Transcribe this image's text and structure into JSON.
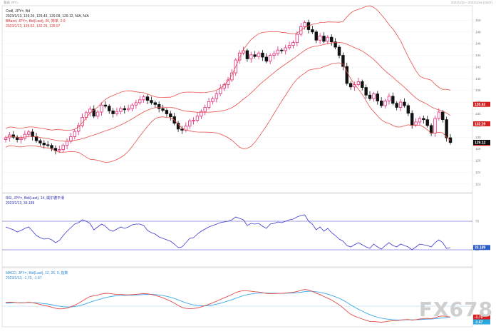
{
  "header": {
    "app_label": "報表 JPY=",
    "time_range": "2022/4/20 - 2023/1/16 (GMT)"
  },
  "main_panel": {
    "legend_line1": "Cndl, JPY=, Bd",
    "legend_line2": "2023/1/13, 129.26, 129.43, 129.09, 129.12, N/A, N/A",
    "legend_line3": "BBand, JPY=, Bid(Last), 20, 简单, 2.0",
    "legend_line4": "2023/1/13, 135.62, 132.29, 128.97"
  },
  "rsi_panel": {
    "legend_line1": "RSI, JPY=, Bid(Last), 14, 威尔德平滑",
    "legend_line2": "2023/1/13, 33.189"
  },
  "macd_panel": {
    "legend_line1": "MACD, JPY=, Bid(Last), 12, 26, 9, 指数",
    "legend_line2": "2023/1/13, -1.70, -1.67"
  },
  "watermark": "FX678",
  "colors": {
    "up_candle": "#e0287a",
    "down_candle": "#111111",
    "bband": "#e8504a",
    "rsi": "#3a3ad0",
    "macd_line": "#e04848",
    "signal_line": "#3aa8e8",
    "badge_red": "#d81e1e",
    "badge_black": "#111111",
    "badge_blue": "#2a5cc8",
    "badge_cyan": "#2aa8e0"
  },
  "chart_data": [
    {
      "type": "candlestick",
      "series_label": "Cndl, JPY=, Bd",
      "ylim": [
        121,
        152
      ],
      "y_ticks": [
        122,
        124,
        126,
        128,
        130,
        132,
        134,
        136,
        138,
        140,
        142,
        144,
        146,
        148,
        150
      ],
      "last_close_label": "129.12",
      "bband_upper_label": "135.62",
      "bband_mid_label": "132.29",
      "bband_lower_label": "128.97",
      "closes": [
        129.9,
        130.4,
        130.0,
        129.6,
        129.8,
        130.5,
        130.9,
        130.1,
        129.4,
        129.0,
        128.7,
        128.6,
        128.1,
        127.7,
        127.9,
        128.6,
        129.3,
        130.1,
        131.0,
        132.0,
        133.4,
        134.2,
        134.8,
        133.6,
        134.3,
        135.5,
        135.3,
        134.5,
        134.0,
        134.4,
        134.9,
        134.7,
        134.9,
        135.5,
        135.9,
        136.4,
        136.9,
        136.3,
        135.9,
        135.6,
        134.9,
        134.6,
        134.0,
        133.5,
        132.4,
        131.4,
        131.2,
        131.9,
        132.8,
        132.9,
        133.6,
        134.4,
        135.1,
        136.1,
        136.6,
        137.4,
        138.4,
        139.0,
        139.8,
        141.0,
        143.2,
        144.4,
        144.8,
        143.4,
        144.1,
        143.8,
        144.4,
        143.7,
        143.0,
        144.0,
        144.3,
        144.9,
        144.8,
        145.3,
        145.7,
        146.2,
        147.6,
        148.9,
        149.6,
        148.4,
        148.0,
        146.6,
        147.3,
        146.4,
        147.1,
        146.3,
        145.4,
        144.0,
        142.1,
        139.2,
        138.6,
        139.0,
        139.5,
        138.5,
        137.2,
        136.6,
        137.4,
        136.2,
        135.4,
        136.2,
        137.0,
        135.8,
        135.1,
        136.0,
        135.4,
        134.1,
        132.1,
        132.6,
        133.2,
        133.0,
        132.0,
        130.7,
        133.2,
        134.3,
        133.0,
        129.9,
        129.1
      ]
    },
    {
      "type": "line",
      "series_label": "RSI, JPY=, Bid(Last), 14",
      "ylim": [
        10,
        90
      ],
      "reference_lines": [
        70,
        30
      ],
      "last_value_label": "33.189",
      "values": [
        62,
        60,
        58,
        55,
        57,
        60,
        62,
        56,
        50,
        47,
        45,
        46,
        44,
        40,
        43,
        50,
        56,
        61,
        66,
        68,
        72,
        70,
        67,
        58,
        62,
        66,
        63,
        58,
        56,
        59,
        62,
        60,
        62,
        65,
        66,
        66,
        64,
        57,
        54,
        52,
        48,
        46,
        44,
        42,
        38,
        33,
        34,
        40,
        46,
        47,
        52,
        56,
        59,
        62,
        64,
        66,
        68,
        69,
        70,
        72,
        76,
        74,
        72,
        64,
        67,
        66,
        67,
        63,
        60,
        66,
        67,
        69,
        68,
        70,
        72,
        73,
        76,
        78,
        79,
        70,
        66,
        58,
        62,
        56,
        60,
        54,
        50,
        45,
        42,
        36,
        34,
        37,
        40,
        37,
        34,
        32,
        38,
        34,
        31,
        36,
        40,
        36,
        34,
        38,
        36,
        34,
        30,
        34,
        38,
        37,
        36,
        34,
        40,
        44,
        40,
        32,
        33
      ]
    },
    {
      "type": "line",
      "series_label": "MACD, JPY=, Bid(Last), 12, 26, 9",
      "ylim": [
        -3,
        4
      ],
      "macd_label": "-1.70",
      "signal_label": "-1.67",
      "macd": [
        0.6,
        0.62,
        0.6,
        0.55,
        0.52,
        0.55,
        0.6,
        0.55,
        0.42,
        0.28,
        0.12,
        0.0,
        -0.15,
        -0.32,
        -0.42,
        -0.4,
        -0.3,
        -0.1,
        0.15,
        0.45,
        0.82,
        1.18,
        1.5,
        1.6,
        1.72,
        1.9,
        2.0,
        1.98,
        1.9,
        1.85,
        1.82,
        1.78,
        1.76,
        1.8,
        1.84,
        1.9,
        1.96,
        1.92,
        1.82,
        1.68,
        1.5,
        1.3,
        1.05,
        0.78,
        0.45,
        0.1,
        -0.2,
        -0.35,
        -0.38,
        -0.36,
        -0.28,
        -0.12,
        0.08,
        0.3,
        0.52,
        0.78,
        1.05,
        1.3,
        1.55,
        1.82,
        2.12,
        2.3,
        2.42,
        2.38,
        2.32,
        2.25,
        2.2,
        2.1,
        1.98,
        1.95,
        1.95,
        1.98,
        2.0,
        2.05,
        2.1,
        2.16,
        2.28,
        2.45,
        2.6,
        2.5,
        2.3,
        2.02,
        1.8,
        1.5,
        1.25,
        0.95,
        0.6,
        0.2,
        -0.25,
        -0.8,
        -1.25,
        -1.55,
        -1.78,
        -2.0,
        -2.2,
        -2.38,
        -2.4,
        -2.45,
        -2.5,
        -2.42,
        -2.32,
        -2.28,
        -2.25,
        -2.15,
        -2.1,
        -2.08,
        -2.15,
        -2.1,
        -2.0,
        -1.92,
        -1.9,
        -1.95,
        -1.8,
        -1.6,
        -1.52,
        -1.62,
        -1.7
      ],
      "signal": [
        0.45,
        0.5,
        0.54,
        0.55,
        0.55,
        0.55,
        0.56,
        0.56,
        0.53,
        0.48,
        0.4,
        0.32,
        0.22,
        0.1,
        -0.01,
        -0.09,
        -0.13,
        -0.12,
        -0.06,
        0.04,
        0.2,
        0.4,
        0.62,
        0.8,
        0.98,
        1.16,
        1.32,
        1.46,
        1.56,
        1.62,
        1.66,
        1.69,
        1.7,
        1.72,
        1.74,
        1.77,
        1.81,
        1.83,
        1.83,
        1.8,
        1.74,
        1.65,
        1.53,
        1.38,
        1.2,
        0.98,
        0.74,
        0.52,
        0.34,
        0.2,
        0.1,
        0.06,
        0.06,
        0.11,
        0.19,
        0.31,
        0.46,
        0.63,
        0.81,
        1.01,
        1.23,
        1.44,
        1.64,
        1.79,
        1.9,
        1.98,
        2.03,
        2.05,
        2.04,
        2.02,
        2.0,
        2.0,
        2.0,
        2.01,
        2.03,
        2.06,
        2.1,
        2.17,
        2.26,
        2.31,
        2.31,
        2.25,
        2.16,
        2.02,
        1.87,
        1.68,
        1.47,
        1.21,
        0.92,
        0.57,
        0.2,
        -0.15,
        -0.48,
        -0.78,
        -1.06,
        -1.32,
        -1.54,
        -1.72,
        -1.87,
        -1.98,
        -2.05,
        -2.1,
        -2.13,
        -2.14,
        -2.13,
        -2.12,
        -2.12,
        -2.12,
        -2.09,
        -2.06,
        -2.02,
        -2.0,
        -1.96,
        -1.89,
        -1.82,
        -1.78,
        -1.67
      ]
    }
  ]
}
